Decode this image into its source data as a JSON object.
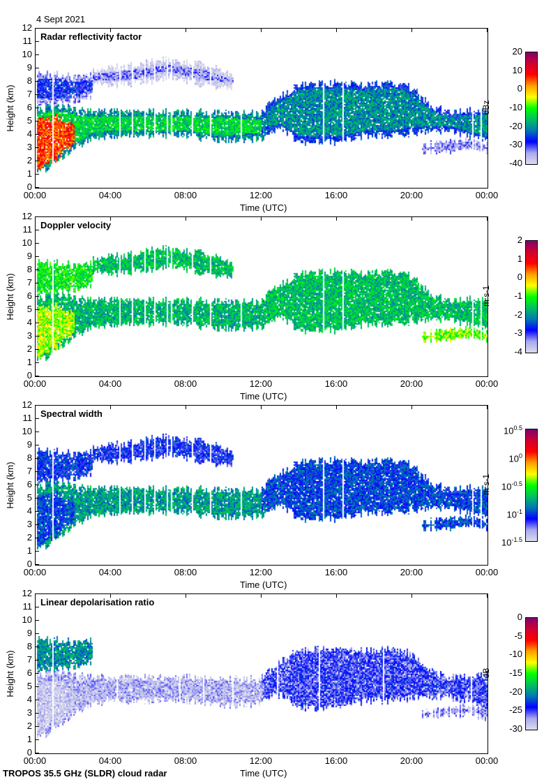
{
  "date_label": "4 Sept 2021",
  "footer": "TROPOS 35.5 GHz (SLDR) cloud radar",
  "colormap": [
    "#dcdcec",
    "#a8a8f0",
    "#0000ff",
    "#0078b4",
    "#00c060",
    "#00ff00",
    "#ffff00",
    "#ffa000",
    "#ff0000",
    "#d00030",
    "#800070"
  ],
  "chart_data": [
    {
      "type": "heatmap",
      "title": "Radar reflectivity factor",
      "xlabel": "Time (UTC)",
      "ylabel": "Height (km)",
      "xlim": [
        0,
        24
      ],
      "ylim": [
        0,
        12
      ],
      "xticks": [
        "00:00",
        "04:00",
        "08:00",
        "12:00",
        "16:00",
        "20:00",
        "00:00"
      ],
      "yticks": [
        "0",
        "1",
        "2",
        "3",
        "4",
        "5",
        "6",
        "7",
        "8",
        "9",
        "10",
        "11",
        "12"
      ],
      "colorbar": {
        "unit": "dBz",
        "range": [
          -40,
          20
        ],
        "ticks": [
          "20",
          "10",
          "0",
          "-10",
          "-20",
          "-30",
          "-40"
        ],
        "log": false
      },
      "layer_values": {
        "low": -14,
        "upperA": -28,
        "upperB": -33,
        "mid": -20,
        "lowlate": -28,
        "core": 6
      }
    },
    {
      "type": "heatmap",
      "title": "Doppler velocity",
      "xlabel": "Time (UTC)",
      "ylabel": "Height (km)",
      "xlim": [
        0,
        24
      ],
      "ylim": [
        0,
        12
      ],
      "xticks": [
        "00:00",
        "04:00",
        "08:00",
        "12:00",
        "16:00",
        "20:00",
        "00:00"
      ],
      "yticks": [
        "0",
        "1",
        "2",
        "3",
        "4",
        "5",
        "6",
        "7",
        "8",
        "9",
        "10",
        "11",
        "12"
      ],
      "colorbar": {
        "unit": "m s-1",
        "range": [
          -4,
          2
        ],
        "ticks": [
          "2",
          "1",
          "0",
          "-1",
          "-2",
          "-3",
          "-4"
        ],
        "log": false
      },
      "layer_values": {
        "low": -1.7,
        "upperA": -1.2,
        "upperB": -1.6,
        "mid": -1.6,
        "lowlate": -0.8,
        "core": -0.6
      }
    },
    {
      "type": "heatmap",
      "title": "Spectral width",
      "xlabel": "Time (UTC)",
      "ylabel": "Height (km)",
      "xlim": [
        0,
        24
      ],
      "ylim": [
        0,
        12
      ],
      "xticks": [
        "00:00",
        "04:00",
        "08:00",
        "12:00",
        "16:00",
        "20:00",
        "00:00"
      ],
      "yticks": [
        "0",
        "1",
        "2",
        "3",
        "4",
        "5",
        "6",
        "7",
        "8",
        "9",
        "10",
        "11",
        "12"
      ],
      "colorbar": {
        "unit": "m s-1",
        "range": [
          -1.5,
          0.5
        ],
        "ticks": [
          "0.5",
          "0",
          "-0.5",
          "-1",
          "-1.5"
        ],
        "log": true
      },
      "layer_values": {
        "low": -0.8,
        "upperA": -1.05,
        "upperB": -1.1,
        "mid": -1.0,
        "lowlate": -1.0,
        "core": -1.0
      }
    },
    {
      "type": "heatmap",
      "title": "Linear depolarisation ratio",
      "xlabel": "Time (UTC)",
      "ylabel": "Height (km)",
      "xlim": [
        0,
        24
      ],
      "ylim": [
        0,
        12
      ],
      "xticks": [
        "00:00",
        "04:00",
        "08:00",
        "12:00",
        "16:00",
        "20:00",
        "00:00"
      ],
      "yticks": [
        "0",
        "1",
        "2",
        "3",
        "4",
        "5",
        "6",
        "7",
        "8",
        "9",
        "10",
        "11",
        "12"
      ],
      "colorbar": {
        "unit": "dB",
        "range": [
          -30,
          0
        ],
        "ticks": [
          "0",
          "-5",
          "-10",
          "-15",
          "-20",
          "-25",
          "-30"
        ],
        "log": false
      },
      "layer_values": {
        "low": -28,
        "upperA": -20,
        "upperB": null,
        "mid": -25,
        "lowlate": -27,
        "core": -29
      }
    }
  ],
  "layers": {
    "low": {
      "t": [
        0,
        0.5,
        1,
        2,
        3,
        4,
        8,
        10,
        12,
        12.5
      ],
      "base": [
        1.5,
        1.4,
        2,
        3,
        3.8,
        4,
        4,
        3.6,
        3.8,
        4.6
      ],
      "top": [
        6,
        6.1,
        6.2,
        6,
        5.8,
        5.8,
        5.8,
        5.7,
        5.6,
        5.5
      ]
    },
    "upperA": {
      "t": [
        0,
        1,
        2,
        3
      ],
      "base": [
        6.4,
        6.3,
        6.5,
        7
      ],
      "top": [
        8.6,
        8.7,
        8.4,
        8.6
      ]
    },
    "upperB": {
      "t": [
        3,
        5,
        7,
        9,
        10.5
      ],
      "base": [
        7.8,
        7.8,
        8.4,
        7.8,
        7.6
      ],
      "top": [
        9,
        9.3,
        9.7,
        9.3,
        8.5
      ]
    },
    "mid": {
      "t": [
        12,
        13,
        14,
        16,
        17.5,
        19,
        20,
        21,
        22,
        24
      ],
      "base": [
        4.2,
        4.5,
        3.5,
        3.5,
        4,
        4,
        4.2,
        4.3,
        4.3,
        3.5
      ],
      "top": [
        5.8,
        7,
        7.8,
        8,
        7.8,
        8,
        7.5,
        6.2,
        5.8,
        6
      ]
    },
    "lowlate": {
      "t": [
        20.5,
        22,
        23,
        24
      ],
      "base": [
        2.8,
        2.9,
        3,
        2.7
      ],
      "top": [
        3.2,
        3.5,
        3.7,
        3.4
      ]
    },
    "core": {
      "t": [
        0,
        1,
        2
      ],
      "base": [
        1.6,
        2.2,
        3.2
      ],
      "top": [
        5,
        5.4,
        5
      ]
    }
  }
}
